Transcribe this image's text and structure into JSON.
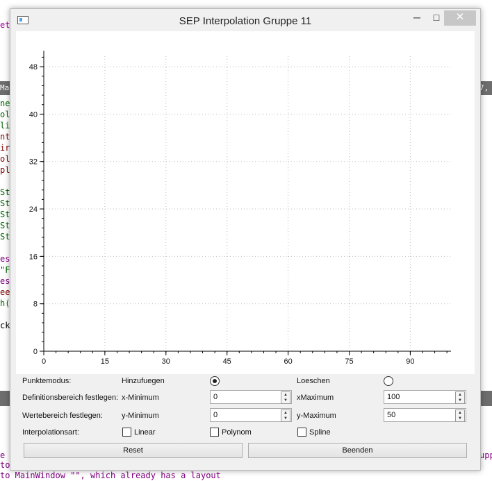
{
  "window": {
    "title": "SEP Interpolation Gruppe 11",
    "controls": {
      "minimize": "─",
      "maximize": "□",
      "close": "✕"
    }
  },
  "chart_data": {
    "type": "scatter",
    "x": [],
    "y": [],
    "xlim": [
      0,
      100
    ],
    "ylim": [
      0,
      50
    ],
    "x_ticks": [
      "0",
      "15",
      "30",
      "45",
      "60",
      "75",
      "90"
    ],
    "y_ticks": [
      "0",
      "8",
      "16",
      "24",
      "32",
      "40",
      "48"
    ],
    "grid": true,
    "title": "",
    "xlabel": "",
    "ylabel": ""
  },
  "controls": {
    "punktemodus": {
      "label": "Punktemodus:",
      "add_label": "Hinzufuegen",
      "delete_label": "Loeschen",
      "selected": "Hinzufuegen"
    },
    "definitionsbereich": {
      "label": "Definitionsbereich festlegen:",
      "min_label": "x-Minimum",
      "min_value": "0",
      "max_label": "xMaximum",
      "max_value": "100"
    },
    "wertebereich": {
      "label": "Wertebereich festlegen:",
      "min_label": "y-Minimum",
      "min_value": "0",
      "max_label": "y-Maximum",
      "max_value": "50"
    },
    "interpolationsart": {
      "label": "Interpolationsart:",
      "linear": "Linear",
      "polynom": "Polynom",
      "spline": "Spline"
    },
    "reset_label": "Reset",
    "beenden_label": "Beenden"
  },
  "background_code": {
    "lines": [
      {
        "text": "et",
        "color": "#a000a0"
      },
      {
        "text": "ne",
        "color": "#006400"
      },
      {
        "text": "ol",
        "color": "#006400"
      },
      {
        "text": "li",
        "color": "#006400"
      },
      {
        "text": "nt",
        "color": "#800000"
      },
      {
        "text": "ir",
        "color": "#800000"
      },
      {
        "text": "ol",
        "color": "#800000"
      },
      {
        "text": "pl",
        "color": "#800000"
      },
      {
        "text": "St",
        "color": "#006400"
      },
      {
        "text": "St",
        "color": "#006400"
      },
      {
        "text": "St",
        "color": "#006400"
      },
      {
        "text": "St",
        "color": "#006400"
      },
      {
        "text": "St",
        "color": "#006400"
      },
      {
        "text": "es",
        "color": "#800080"
      },
      {
        "text": "\"F",
        "color": "#006400"
      },
      {
        "text": "es",
        "color": "#800080"
      },
      {
        "text": "ee",
        "color": "#800000"
      },
      {
        "text": "h(",
        "color": "#006400"
      },
      {
        "text": "ck",
        "color": "#000000"
      },
      {
        "text": "e",
        "color": "#800080"
      },
      {
        "text": "to",
        "color": "#800080"
      }
    ],
    "bottom_line": "to MainWindow \"\", which already has a layout",
    "strip_top_left": "Mai",
    "strip_top_right": "7, C",
    "right_fragment": "upp"
  }
}
